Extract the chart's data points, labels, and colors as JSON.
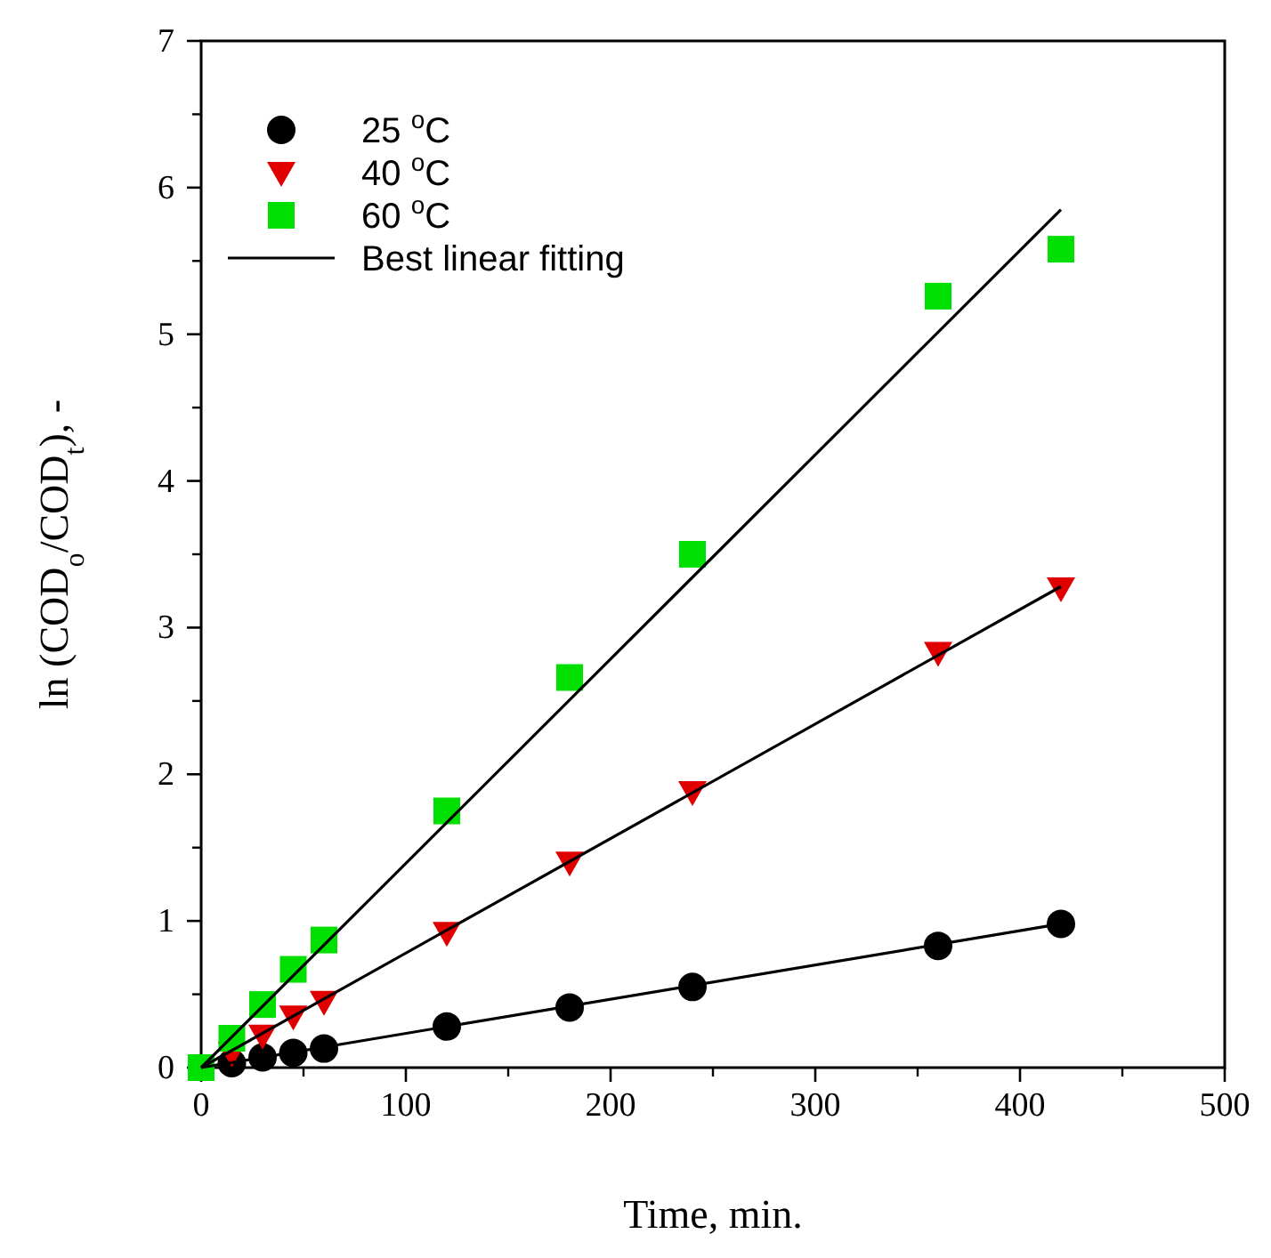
{
  "chart_data": {
    "type": "scatter",
    "xlabel": "Time, min.",
    "ylabel": "ln (COD$_{o}$/COD$_{t}$), -",
    "xlim": [
      0,
      500
    ],
    "xticks": [
      0,
      100,
      200,
      300,
      400,
      500
    ],
    "ylim": [
      0,
      7
    ],
    "yticks": [
      0,
      1,
      2,
      3,
      4,
      5,
      6,
      7
    ],
    "grid": false,
    "legend": "top left",
    "series": [
      {
        "name": "25 $^{o}$C",
        "color": "#000000",
        "marker": "circle",
        "x": [
          15,
          30,
          45,
          60,
          120,
          180,
          240,
          360,
          420
        ],
        "values": [
          0.03,
          0.07,
          0.1,
          0.13,
          0.28,
          0.41,
          0.55,
          0.83,
          0.98
        ]
      },
      {
        "name": "40 $^{o}$C",
        "color": "#e00000",
        "marker": "triangle",
        "x": [
          15,
          30,
          45,
          60,
          120,
          180,
          240,
          360,
          420
        ],
        "values": [
          0.1,
          0.22,
          0.35,
          0.45,
          0.92,
          1.4,
          1.88,
          2.83,
          3.27
        ]
      },
      {
        "name": "60 $^{o}$C",
        "color": "#00e000",
        "marker": "square",
        "x": [
          0,
          15,
          30,
          45,
          60,
          120,
          180,
          240,
          360,
          420
        ],
        "values": [
          0,
          0.2,
          0.43,
          0.67,
          0.87,
          1.75,
          2.66,
          3.5,
          5.26,
          5.58
        ]
      },
      {
        "name": "Best linear fitting",
        "type": "line",
        "color": "#000000",
        "marker": "none",
        "x": [
          0,
          420
        ],
        "values": [
          0,
          0.98
        ]
      },
      {
        "type": "line",
        "color": "#000000",
        "marker": "none",
        "x": [
          0,
          420
        ],
        "values": [
          0,
          3.28
        ]
      },
      {
        "type": "line",
        "color": "#000000",
        "marker": "none",
        "x": [
          0,
          420
        ],
        "values": [
          0,
          5.85
        ]
      }
    ]
  }
}
